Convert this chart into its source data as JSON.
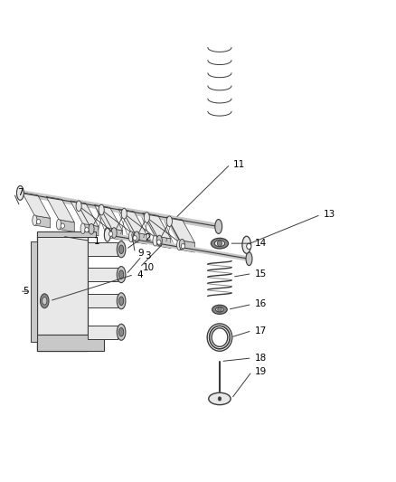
{
  "bg_color": "#ffffff",
  "line_color": "#3a3a3a",
  "figsize": [
    4.38,
    5.33
  ],
  "dpi": 100,
  "dark": "#3a3a3a",
  "mid_gray": "#888888",
  "light_gray": "#c8c8c8",
  "v_light": "#e8e8e8",
  "white": "#ffffff"
}
